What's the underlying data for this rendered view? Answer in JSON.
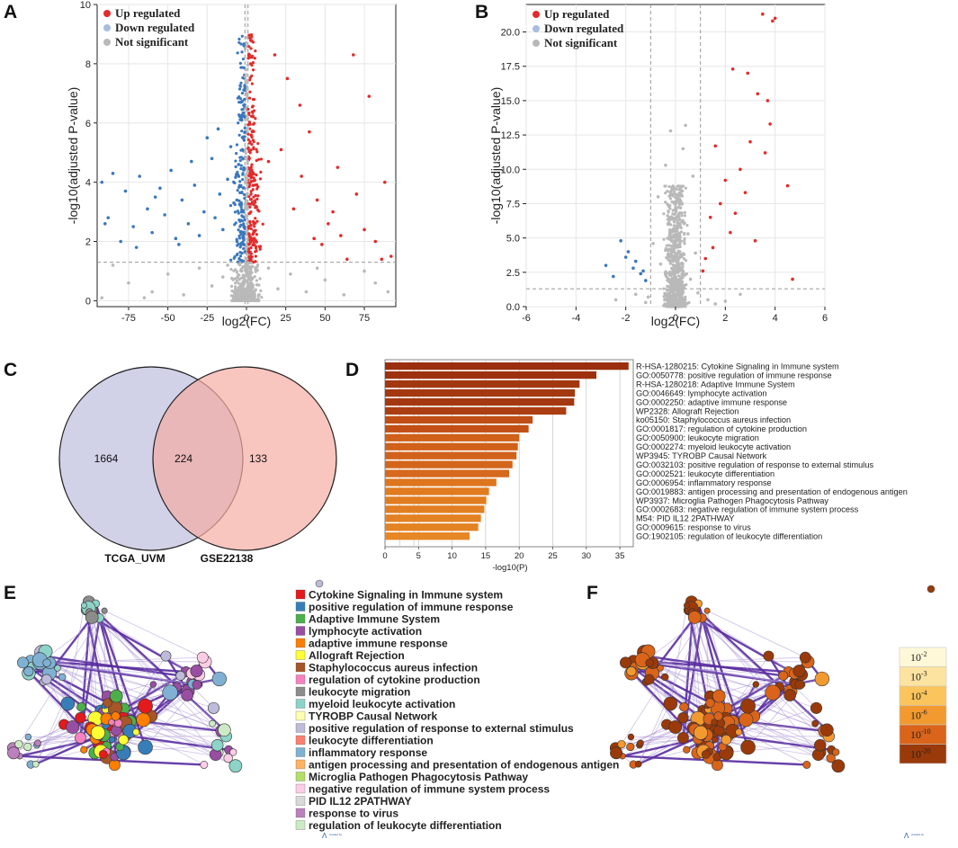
{
  "panels": {
    "a": "A",
    "b": "B",
    "c": "C",
    "d": "D",
    "e": "E",
    "f": "F"
  },
  "legend": {
    "up": "Up regulated",
    "down": "Down regulated",
    "ns": "Not significant",
    "up_color": "#e32b2b",
    "down_color": "#3a78bd",
    "ns_color": "#b9b9b9",
    "down_swatch": "#a9bde0"
  },
  "chart_data": [
    {
      "id": "volcano_A",
      "type": "scatter",
      "xlabel": "log2(FC)",
      "ylabel": "-log10(adjusted P-value)",
      "xlim": [
        -95,
        95
      ],
      "ylim": [
        -0.2,
        10
      ],
      "xticks": [
        -75,
        -50,
        -25,
        0,
        25,
        50,
        75
      ],
      "yticks": [
        0,
        2,
        4,
        6,
        8,
        10
      ],
      "fc_cutoff": 1,
      "p_cutoff": 1.3,
      "series": [
        {
          "name": "Up regulated",
          "points": [
            [
              68,
              8.3
            ],
            [
              78,
              6.9
            ],
            [
              88,
              4.0
            ],
            [
              45,
              3.4
            ],
            [
              70,
              3.6
            ],
            [
              92,
              1.5
            ],
            [
              60,
              2.2
            ],
            [
              52,
              2.6
            ],
            [
              82,
              2.0
            ],
            [
              40,
              5.7
            ],
            [
              58,
              4.5
            ],
            [
              34,
              6.6
            ],
            [
              26,
              7.5
            ],
            [
              18,
              8.3
            ],
            [
              14,
              4.7
            ],
            [
              30,
              3.1
            ],
            [
              48,
              1.9
            ],
            [
              64,
              1.4
            ],
            [
              86,
              1.4
            ],
            [
              75,
              2.4
            ],
            [
              35,
              4.2
            ],
            [
              22,
              5.1
            ],
            [
              55,
              3.0
            ],
            [
              43,
              2.1
            ]
          ]
        },
        {
          "name": "Down regulated",
          "points": [
            [
              -92,
              4.0
            ],
            [
              -88,
              2.8
            ],
            [
              -85,
              4.3
            ],
            [
              -80,
              2.0
            ],
            [
              -77,
              3.7
            ],
            [
              -72,
              2.5
            ],
            [
              -68,
              4.2
            ],
            [
              -63,
              3.1
            ],
            [
              -60,
              2.3
            ],
            [
              -55,
              3.8
            ],
            [
              -52,
              2.9
            ],
            [
              -48,
              4.4
            ],
            [
              -45,
              2.1
            ],
            [
              -41,
              3.4
            ],
            [
              -37,
              2.6
            ],
            [
              -33,
              3.9
            ],
            [
              -30,
              2.2
            ],
            [
              -27,
              3.0
            ],
            [
              -25,
              5.5
            ],
            [
              -22,
              4.8
            ],
            [
              -20,
              2.8
            ],
            [
              -17,
              3.6
            ],
            [
              -15,
              2.4
            ],
            [
              -12,
              4.1
            ],
            [
              -10,
              5.2
            ],
            [
              -8,
              3.3
            ],
            [
              -6,
              2.0
            ],
            [
              -5,
              4.6
            ],
            [
              -3,
              6.1
            ],
            [
              -2,
              3.0
            ],
            [
              -90,
              2.6
            ],
            [
              -70,
              1.8
            ],
            [
              -43,
              1.9
            ],
            [
              -58,
              3.5
            ],
            [
              -35,
              4.7
            ],
            [
              -18,
              5.8
            ]
          ]
        },
        {
          "name": "Not significant",
          "points": [
            [
              -92,
              0.1
            ],
            [
              -75,
              0.6
            ],
            [
              -60,
              0.3
            ],
            [
              -50,
              0.9
            ],
            [
              -40,
              0.2
            ],
            [
              -30,
              1.1
            ],
            [
              -22,
              0.5
            ],
            [
              -15,
              0.8
            ],
            [
              -8,
              0.3
            ],
            [
              -3,
              1.0
            ],
            [
              3,
              0.6
            ],
            [
              8,
              0.2
            ],
            [
              14,
              1.1
            ],
            [
              20,
              0.4
            ],
            [
              28,
              0.9
            ],
            [
              38,
              0.3
            ],
            [
              50,
              0.7
            ],
            [
              62,
              0.2
            ],
            [
              75,
              1.0
            ],
            [
              90,
              0.3
            ],
            [
              -85,
              1.2
            ],
            [
              -65,
              0.1
            ],
            [
              -12,
              1.2
            ],
            [
              45,
              1.1
            ],
            [
              82,
              0.6
            ]
          ]
        }
      ]
    },
    {
      "id": "volcano_B",
      "type": "scatter",
      "xlabel": "log2(FC)",
      "ylabel": "-log10(adjusted P-value)",
      "xlim": [
        -6,
        6
      ],
      "ylim": [
        0,
        22
      ],
      "xticks": [
        -6,
        -4,
        -2,
        0,
        2,
        4,
        6
      ],
      "yticks": [
        0.0,
        2.5,
        5.0,
        7.5,
        10.0,
        12.5,
        15.0,
        17.5,
        20.0
      ],
      "fc_cutoff": 1,
      "p_cutoff": 1.3,
      "series": [
        {
          "name": "Up regulated",
          "points": [
            [
              3.5,
              21.3
            ],
            [
              3.9,
              20.8
            ],
            [
              4.0,
              21.0
            ],
            [
              3.3,
              15.5
            ],
            [
              3.7,
              15.0
            ],
            [
              3.8,
              13.3
            ],
            [
              2.9,
              17.0
            ],
            [
              2.3,
              17.3
            ],
            [
              4.5,
              8.8
            ],
            [
              4.7,
              2.0
            ],
            [
              3.0,
              12.0
            ],
            [
              2.6,
              10.0
            ],
            [
              2.0,
              9.2
            ],
            [
              1.6,
              11.7
            ],
            [
              1.8,
              7.5
            ],
            [
              2.2,
              5.4
            ],
            [
              1.4,
              6.5
            ],
            [
              1.2,
              3.5
            ],
            [
              3.6,
              11.2
            ],
            [
              2.8,
              8.3
            ],
            [
              1.5,
              4.3
            ],
            [
              2.4,
              6.8
            ],
            [
              3.2,
              4.8
            ],
            [
              1.1,
              2.6
            ]
          ]
        },
        {
          "name": "Down regulated",
          "points": [
            [
              -2.8,
              3.0
            ],
            [
              -2.2,
              4.8
            ],
            [
              -1.9,
              4.0
            ],
            [
              -1.6,
              3.3
            ],
            [
              -1.4,
              2.4
            ],
            [
              -1.2,
              1.9
            ],
            [
              -2.5,
              2.2
            ],
            [
              -1.7,
              2.8
            ],
            [
              -2.0,
              3.6
            ],
            [
              -1.3,
              2.6
            ]
          ]
        },
        {
          "name": "Not significant",
          "points": [
            [
              0.4,
              13.2
            ],
            [
              -0.2,
              12.8
            ],
            [
              0.3,
              11.5
            ],
            [
              -0.4,
              10.3
            ],
            [
              0.7,
              9.5
            ],
            [
              -0.7,
              8.0
            ],
            [
              0.2,
              7.2
            ],
            [
              -0.3,
              6.0
            ],
            [
              0.5,
              5.3
            ],
            [
              -0.9,
              4.6
            ],
            [
              0.8,
              3.9
            ],
            [
              -0.6,
              3.1
            ],
            [
              0.1,
              2.5
            ],
            [
              0.6,
              2.0
            ],
            [
              -0.2,
              1.4
            ],
            [
              0.9,
              1.0
            ],
            [
              -1.1,
              0.7
            ],
            [
              1.3,
              0.5
            ],
            [
              -1.6,
              0.9
            ],
            [
              2.0,
              0.4
            ],
            [
              -2.4,
              0.5
            ],
            [
              2.6,
              0.9
            ],
            [
              1.6,
              0.2
            ],
            [
              -1.2,
              0.3
            ]
          ]
        }
      ]
    },
    {
      "id": "venn_C",
      "type": "venn",
      "sets": [
        "TCGA_UVM",
        "GSE22138"
      ],
      "values": {
        "only_left": 1664,
        "both": 224,
        "only_right": 133
      }
    },
    {
      "id": "bar_D",
      "type": "bar",
      "orientation": "horizontal",
      "xlabel": "-log10(P)",
      "xlim": [
        0,
        37
      ],
      "xticks": [
        0,
        5,
        10,
        15,
        20,
        25,
        30,
        35
      ],
      "categories": [
        "R-HSA-1280215: Cytokine Signaling in Immune system",
        "GO:0050778: positive regulation of immune response",
        "R-HSA-1280218: Adaptive Immune System",
        "GO:0046649: lymphocyte activation",
        "GO:0002250: adaptive immune response",
        "WP2328: Allograft Rejection",
        "ko05150: Staphylococcus aureus infection",
        "GO:0001817: regulation of cytokine production",
        "GO:0050900: leukocyte migration",
        "GO:0002274: myeloid leukocyte activation",
        "WP3945: TYROBP Causal Network",
        "GO:0032103: positive regulation of response to external stimulus",
        "GO:0002521: leukocyte differentiation",
        "GO:0006954: inflammatory response",
        "GO:0019883: antigen processing and presentation of endogenous antigen",
        "WP3937: Microglia Pathogen Phagocytosis Pathway",
        "GO:0002683: negative regulation of immune system process",
        "M54: PID IL12 2PATHWAY",
        "GO:0009615: response to virus",
        "GO:1902105: regulation of leukocyte differentiation"
      ],
      "values": [
        36.3,
        31.5,
        29.0,
        28.3,
        28.2,
        27.0,
        22.0,
        21.4,
        20.0,
        19.8,
        19.6,
        19.0,
        18.5,
        16.6,
        15.5,
        15.1,
        14.8,
        14.3,
        13.9,
        12.6
      ],
      "colors": [
        "#9a2e0e",
        "#9c300f",
        "#a23710",
        "#a43911",
        "#a43911",
        "#ab3e12",
        "#c04e15",
        "#c25016",
        "#d0601a",
        "#d0601a",
        "#d1621b",
        "#d4661c",
        "#d6691d",
        "#dd761f",
        "#e07b20",
        "#e17d21",
        "#e27f22",
        "#e38123",
        "#e48323",
        "#e68625"
      ]
    },
    {
      "id": "legend_E",
      "type": "network-legend",
      "items": [
        {
          "label": "Cytokine Signaling in Immune system",
          "color": "#e41a1c"
        },
        {
          "label": "positive regulation of immune response",
          "color": "#377eb8"
        },
        {
          "label": "Adaptive Immune System",
          "color": "#4daf4a"
        },
        {
          "label": "lymphocyte activation",
          "color": "#984ea3"
        },
        {
          "label": "adaptive immune response",
          "color": "#ff7f00"
        },
        {
          "label": "Allograft Rejection",
          "color": "#ffff33"
        },
        {
          "label": "Staphylococcus aureus infection",
          "color": "#a65628"
        },
        {
          "label": "regulation of cytokine production",
          "color": "#f781bf"
        },
        {
          "label": "leukocyte migration",
          "color": "#8c8c8c"
        },
        {
          "label": "myeloid leukocyte activation",
          "color": "#8dd3c7"
        },
        {
          "label": "TYROBP Causal Network",
          "color": "#ffffb3"
        },
        {
          "label": "positive regulation of response to external stimulus",
          "color": "#bebada"
        },
        {
          "label": "leukocyte differentiation",
          "color": "#fb8072"
        },
        {
          "label": "inflammatory response",
          "color": "#80b1d3"
        },
        {
          "label": "antigen processing and presentation of endogenous antigen",
          "color": "#fdb462"
        },
        {
          "label": "Microglia Pathogen Phagocytosis Pathway",
          "color": "#b3de69"
        },
        {
          "label": "negative regulation of immune system process",
          "color": "#fccde5"
        },
        {
          "label": "PID IL12 2PATHWAY",
          "color": "#d9d9d9"
        },
        {
          "label": "response to virus",
          "color": "#bc80bd"
        },
        {
          "label": "regulation of leukocyte differentiation",
          "color": "#ccebc5"
        }
      ]
    },
    {
      "id": "scale_F",
      "type": "color-scale",
      "items": [
        {
          "base": "10",
          "exp": "-2",
          "color": "#fff8d8"
        },
        {
          "base": "10",
          "exp": "-3",
          "color": "#fde3a0"
        },
        {
          "base": "10",
          "exp": "-4",
          "color": "#fbc45c"
        },
        {
          "base": "10",
          "exp": "-6",
          "color": "#f29a30"
        },
        {
          "base": "10",
          "exp": "-10",
          "color": "#d9641a"
        },
        {
          "base": "10",
          "exp": "-20",
          "color": "#9a3a0a"
        }
      ]
    }
  ],
  "credit": "created by"
}
